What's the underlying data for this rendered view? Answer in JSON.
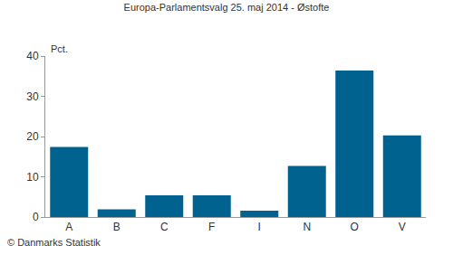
{
  "chart_data": {
    "type": "bar",
    "title": "Europa-Parlamentsvalg 25. maj 2014 - Østofte",
    "y_label": "Pct.",
    "categories": [
      "A",
      "B",
      "C",
      "F",
      "I",
      "N",
      "O",
      "V"
    ],
    "values": [
      17.4,
      1.9,
      5.4,
      5.4,
      1.6,
      12.7,
      36.4,
      20.3
    ],
    "color": "#00628f",
    "ylim": [
      0,
      40
    ],
    "yticks": [
      0,
      10,
      20,
      30,
      40
    ],
    "grid": false,
    "annotations": [
      "© Danmarks Statistik"
    ]
  }
}
